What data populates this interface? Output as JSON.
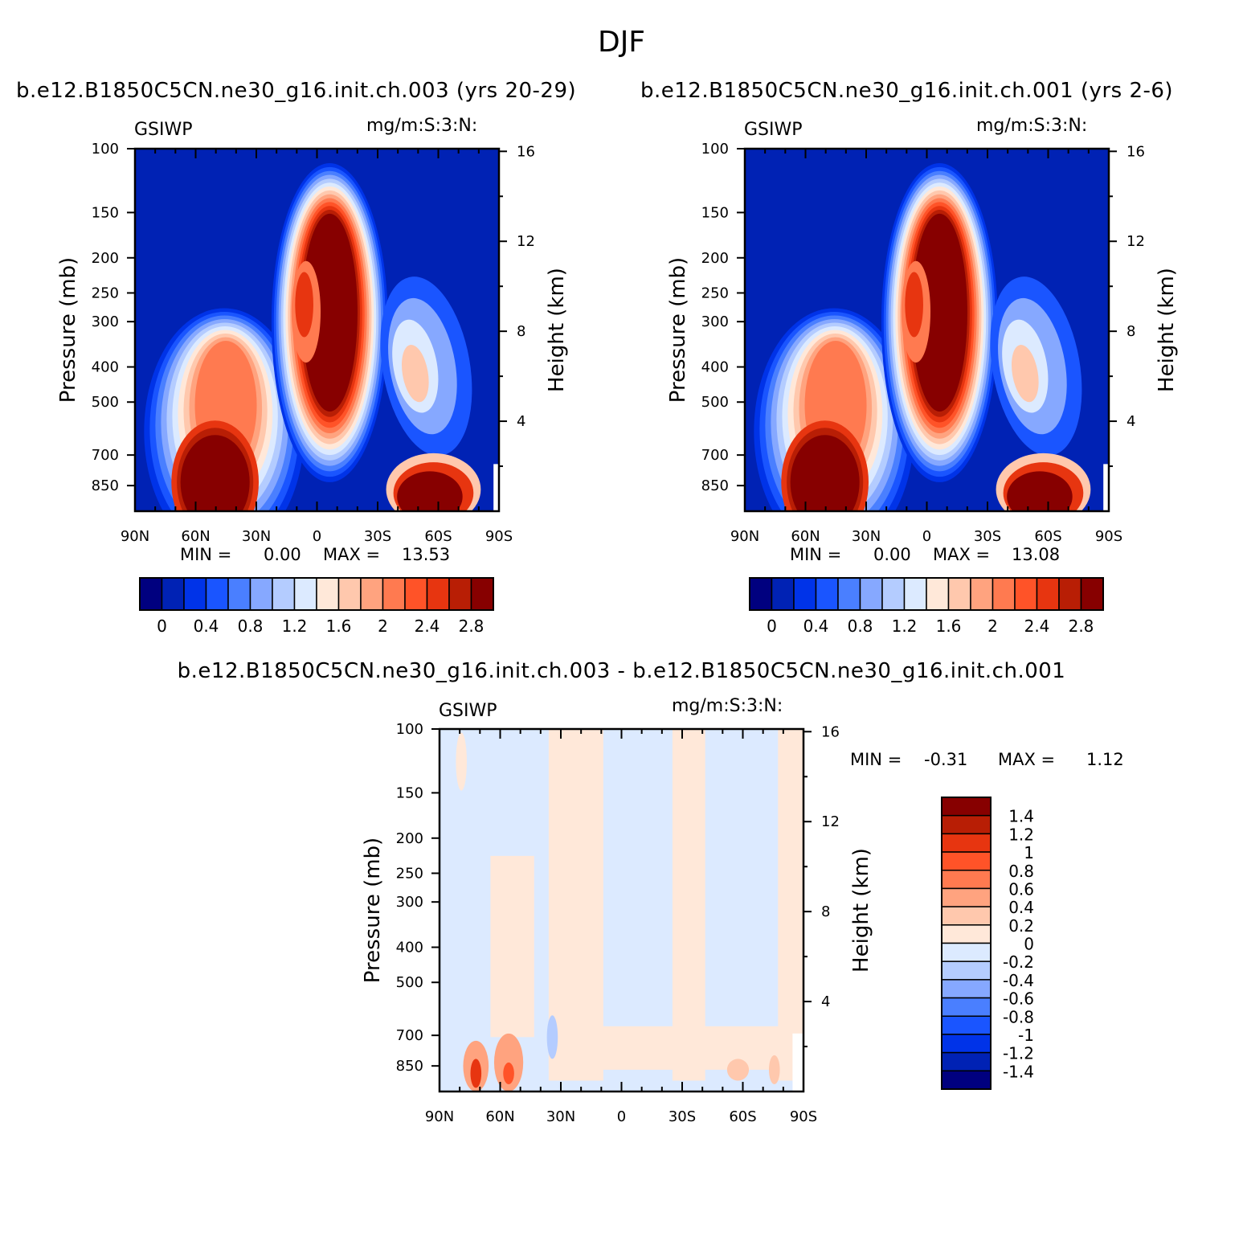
{
  "figure": {
    "season": "DJF",
    "panels": [
      {
        "id": "p1",
        "title": "b.e12.B1850C5CN.ne30_g16.init.ch.003 (yrs 20-29)",
        "left_label": "GSIWP",
        "right_label": "mg/m:S:3:N:",
        "min_label": "MIN =",
        "min_value": "0.00",
        "max_label": "MAX =",
        "max_value": "13.53"
      },
      {
        "id": "p2",
        "title": "b.e12.B1850C5CN.ne30_g16.init.ch.001 (yrs 2-6)",
        "left_label": "GSIWP",
        "right_label": "mg/m:S:3:N:",
        "min_label": "MIN =",
        "min_value": "0.00",
        "max_label": "MAX =",
        "max_value": "13.08"
      },
      {
        "id": "p3",
        "title": "b.e12.B1850C5CN.ne30_g16.init.ch.003 - b.e12.B1850C5CN.ne30_g16.init.ch.001",
        "left_label": "GSIWP",
        "right_label": "mg/m:S:3:N:",
        "min_label": "MIN =",
        "min_value": "-0.31",
        "max_label": "MAX =",
        "max_value": "1.12"
      }
    ]
  },
  "chart_data": [
    {
      "type": "heatmap",
      "title": "b.e12.B1850C5CN.ne30_g16.init.ch.003 (yrs 20-29)",
      "variable": "GSIWP",
      "units": "mg/m:S:3:N:",
      "xlabel": "",
      "ylabel": "Pressure (mb)",
      "y2label": "Height (km)",
      "x_ticks": [
        "90N",
        "60N",
        "30N",
        "0",
        "30S",
        "60S",
        "90S"
      ],
      "x_range": [
        90,
        -90
      ],
      "y_ticks": [
        100,
        150,
        200,
        250,
        300,
        400,
        500,
        700,
        850
      ],
      "y_range": [
        100,
        1000
      ],
      "y_scale": "log",
      "y2_ticks": [
        4,
        8,
        12,
        16
      ],
      "min": 0.0,
      "max": 13.53,
      "colorbar": {
        "orientation": "horizontal",
        "labels": [
          "0",
          "0.4",
          "0.8",
          "1.2",
          "1.6",
          "2",
          "2.4",
          "2.8"
        ]
      }
    },
    {
      "type": "heatmap",
      "title": "b.e12.B1850C5CN.ne30_g16.init.ch.001 (yrs 2-6)",
      "variable": "GSIWP",
      "units": "mg/m:S:3:N:",
      "xlabel": "",
      "ylabel": "Pressure (mb)",
      "y2label": "Height (km)",
      "x_ticks": [
        "90N",
        "60N",
        "30N",
        "0",
        "30S",
        "60S",
        "90S"
      ],
      "x_range": [
        90,
        -90
      ],
      "y_ticks": [
        100,
        150,
        200,
        250,
        300,
        400,
        500,
        700,
        850
      ],
      "y_range": [
        100,
        1000
      ],
      "y_scale": "log",
      "y2_ticks": [
        4,
        8,
        12,
        16
      ],
      "min": 0.0,
      "max": 13.08,
      "colorbar": {
        "orientation": "horizontal",
        "labels": [
          "0",
          "0.4",
          "0.8",
          "1.2",
          "1.6",
          "2",
          "2.4",
          "2.8"
        ]
      }
    },
    {
      "type": "heatmap",
      "title": "b.e12.B1850C5CN.ne30_g16.init.ch.003 - b.e12.B1850C5CN.ne30_g16.init.ch.001",
      "variable": "GSIWP",
      "units": "mg/m:S:3:N:",
      "xlabel": "",
      "ylabel": "Pressure (mb)",
      "y2label": "Height (km)",
      "x_ticks": [
        "90N",
        "60N",
        "30N",
        "0",
        "30S",
        "60S",
        "90S"
      ],
      "x_range": [
        90,
        -90
      ],
      "y_ticks": [
        100,
        150,
        200,
        250,
        300,
        400,
        500,
        700,
        850
      ],
      "y_range": [
        100,
        1000
      ],
      "y_scale": "log",
      "y2_ticks": [
        4,
        8,
        12,
        16
      ],
      "min": -0.31,
      "max": 1.12,
      "colorbar": {
        "orientation": "vertical",
        "labels": [
          "1.4",
          "1.2",
          "1",
          "0.8",
          "0.6",
          "0.4",
          "0.2",
          "0",
          "-0.2",
          "-0.4",
          "-0.6",
          "-0.8",
          "-1",
          "-1.2",
          "-1.4"
        ]
      }
    }
  ],
  "colors": {
    "abs_scale": [
      "#00007f",
      "#0022b4",
      "#0033e8",
      "#1a55ff",
      "#4a7fff",
      "#86a8ff",
      "#b4ccff",
      "#dceaff",
      "#ffe8d9",
      "#ffc8ad",
      "#ffa37f",
      "#ff7a50",
      "#ff5328",
      "#e73510",
      "#b81e05",
      "#870000"
    ],
    "diff_scale_top_to_bottom": [
      "#870000",
      "#b81e05",
      "#e73510",
      "#ff5328",
      "#ff7a50",
      "#ffa37f",
      "#ffc8ad",
      "#ffe8d9",
      "#dceaff",
      "#b4ccff",
      "#86a8ff",
      "#4a7fff",
      "#1a55ff",
      "#0033e8",
      "#0022b4",
      "#00007f"
    ]
  }
}
